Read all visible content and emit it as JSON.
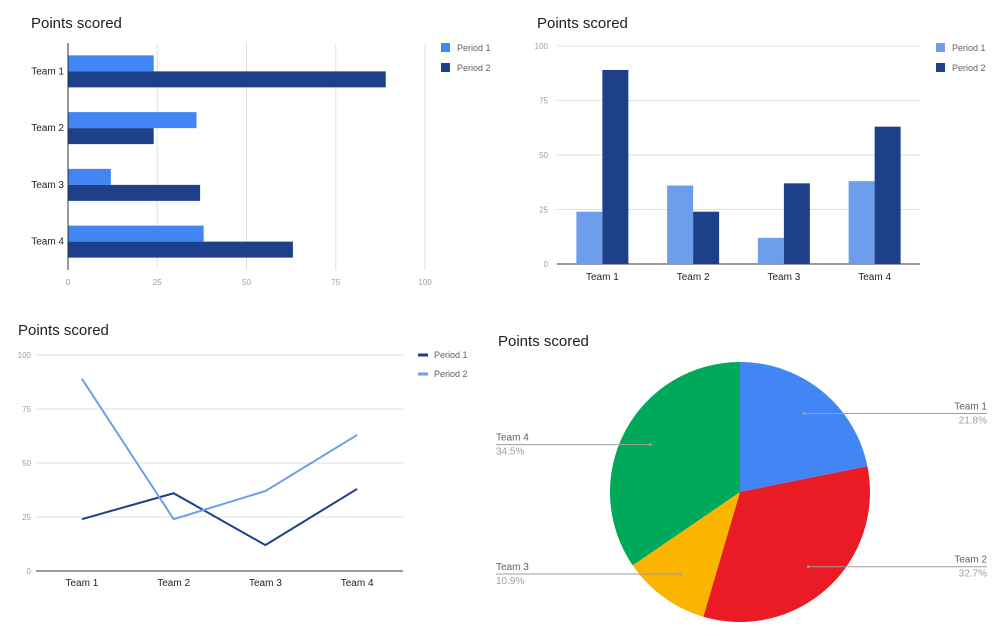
{
  "chart_data": [
    {
      "type": "bar",
      "orientation": "horizontal",
      "title": "Points scored",
      "categories": [
        "Team 1",
        "Team 2",
        "Team 3",
        "Team 4"
      ],
      "series": [
        {
          "name": "Period 1",
          "values": [
            24,
            36,
            12,
            38
          ],
          "color": "#4285f4"
        },
        {
          "name": "Period 2",
          "values": [
            89,
            24,
            37,
            63
          ],
          "color": "#1e3f8a"
        }
      ],
      "xlim": [
        0,
        100
      ],
      "ticks": [
        "0",
        "25",
        "50",
        "75",
        "100"
      ],
      "grid": true,
      "legend": "right"
    },
    {
      "type": "bar",
      "orientation": "vertical",
      "title": "Points scored",
      "categories": [
        "Team 1",
        "Team 2",
        "Team 3",
        "Team 4"
      ],
      "series": [
        {
          "name": "Period 1",
          "values": [
            24,
            36,
            12,
            38
          ],
          "color": "#6d9eeb"
        },
        {
          "name": "Period 2",
          "values": [
            89,
            24,
            37,
            63
          ],
          "color": "#1e3f8a"
        }
      ],
      "ylim": [
        0,
        100
      ],
      "ticks": [
        "0",
        "25",
        "50",
        "75",
        "100"
      ],
      "grid": true,
      "legend": "right"
    },
    {
      "type": "line",
      "title": "Points scored",
      "categories": [
        "Team 1",
        "Team 2",
        "Team 3",
        "Team 4"
      ],
      "series": [
        {
          "name": "Period 1",
          "values": [
            24,
            36,
            12,
            38
          ],
          "color": "#1e3f8a"
        },
        {
          "name": "Period 2",
          "values": [
            89,
            24,
            37,
            63
          ],
          "color": "#6d9eeb"
        }
      ],
      "ylim": [
        0,
        100
      ],
      "ticks": [
        "0",
        "25",
        "50",
        "75",
        "100"
      ],
      "grid": true,
      "legend": "right"
    },
    {
      "type": "pie",
      "title": "Points scored",
      "slices": [
        {
          "label": "Team 1",
          "value": 21.8,
          "pct": "21.8%",
          "color": "#4285f4"
        },
        {
          "label": "Team 2",
          "value": 32.7,
          "pct": "32.7%",
          "color": "#ea1b25"
        },
        {
          "label": "Team 3",
          "value": 10.9,
          "pct": "10.9%",
          "color": "#fbb400"
        },
        {
          "label": "Team 4",
          "value": 34.5,
          "pct": "34.5%",
          "color": "#00a85a"
        }
      ],
      "legend": "labels"
    }
  ]
}
